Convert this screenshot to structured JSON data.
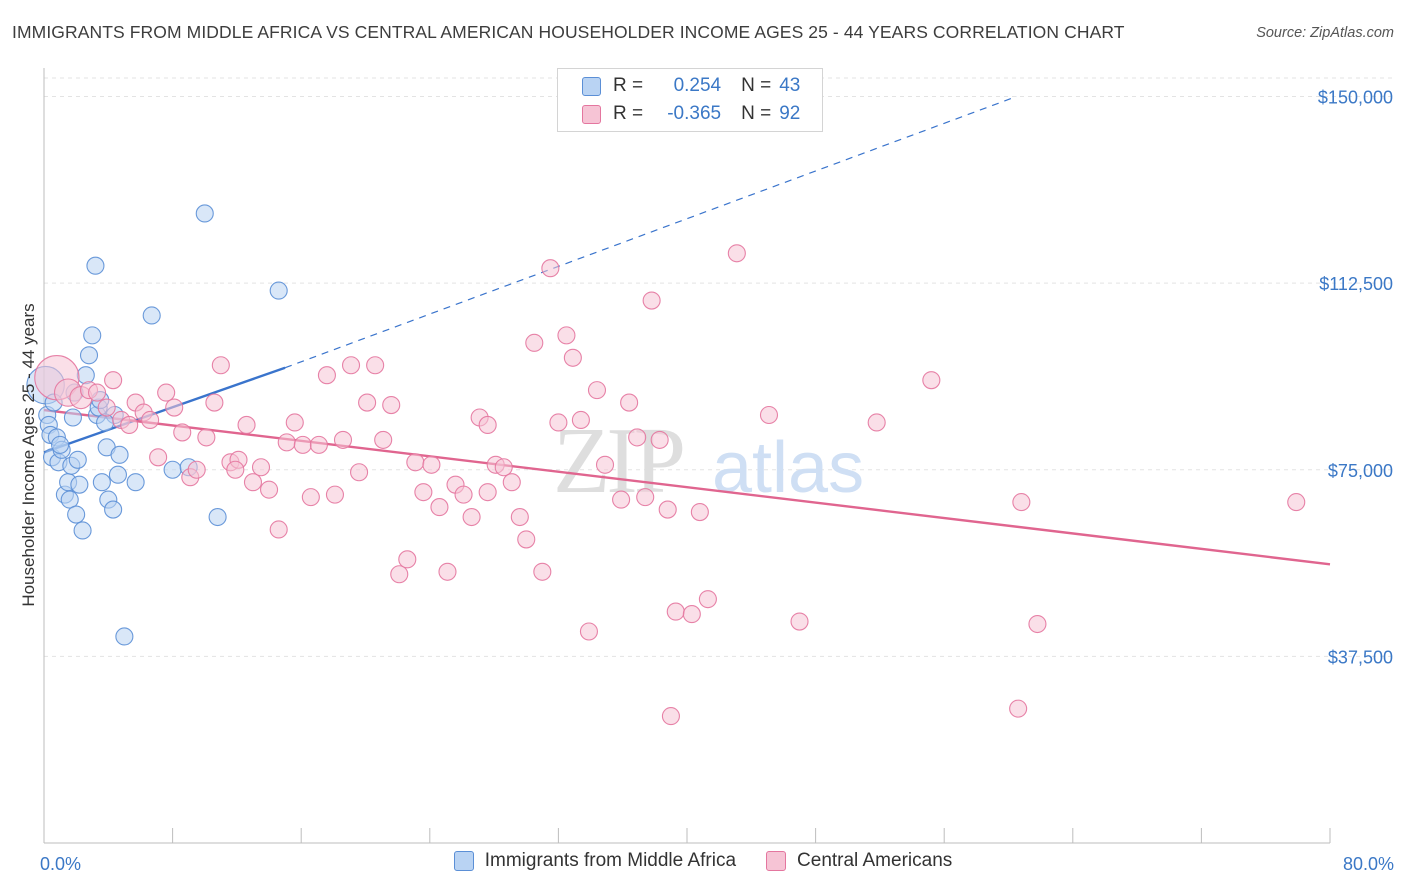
{
  "title": "IMMIGRANTS FROM MIDDLE AFRICA VS CENTRAL AMERICAN HOUSEHOLDER INCOME AGES 25 - 44 YEARS CORRELATION CHART",
  "source": "Source: ZipAtlas.com",
  "watermark": {
    "zip": "ZIP",
    "atlas": "atlas"
  },
  "colors": {
    "blue": "#5b8fd6",
    "blue_fill": "#b9d3f3",
    "blue_line": "#3a74cc",
    "pink": "#e4769f",
    "pink_fill": "#f6c4d5",
    "pink_line": "#e0658f",
    "tick_text": "#3b78c6",
    "grid": "#e3e3e3"
  },
  "stats": [
    {
      "r_label": "R =",
      "r_value": "0.254",
      "n_label": "N =",
      "n_value": "43",
      "series": "blue"
    },
    {
      "r_label": "R =",
      "r_value": "-0.365",
      "n_label": "N =",
      "n_value": "92",
      "series": "pink"
    }
  ],
  "chart_data": {
    "type": "scatter",
    "title": "IMMIGRANTS FROM MIDDLE AFRICA VS CENTRAL AMERICAN HOUSEHOLDER INCOME AGES 25 - 44 YEARS CORRELATION CHART",
    "xlabel": "",
    "ylabel": "Householder Income Ages 25 - 44 years",
    "xlim": [
      0,
      80
    ],
    "ylim": [
      0,
      155000
    ],
    "x_tick_labels": [
      {
        "value": 0,
        "label": "0.0%"
      },
      {
        "value": 80,
        "label": "80.0%"
      }
    ],
    "y_ticks": [
      {
        "value": 37500,
        "label": "$37,500"
      },
      {
        "value": 75000,
        "label": "$75,000"
      },
      {
        "value": 112500,
        "label": "$112,500"
      },
      {
        "value": 150000,
        "label": "$150,000"
      }
    ],
    "grid": true,
    "legend_position": "bottom",
    "series": [
      {
        "name": "Immigrants from Middle Africa",
        "color": "blue",
        "r": 0.254,
        "n": 43,
        "trend": {
          "x": [
            0,
            15
          ],
          "y": [
            78500,
            95500
          ],
          "extended_x": [
            15,
            60.5
          ],
          "extended_y": [
            95500,
            150000
          ]
        },
        "points": [
          [
            0.1,
            92000,
            2.2
          ],
          [
            0.2,
            86000,
            1
          ],
          [
            0.3,
            84000,
            1
          ],
          [
            0.4,
            82000,
            1
          ],
          [
            0.5,
            77500,
            1
          ],
          [
            0.8,
            81500,
            1
          ],
          [
            0.9,
            76500,
            1
          ],
          [
            1.1,
            79000,
            1
          ],
          [
            1.3,
            70000,
            1
          ],
          [
            1.5,
            72500,
            1
          ],
          [
            1.6,
            69000,
            1
          ],
          [
            1.7,
            75800,
            1
          ],
          [
            1.8,
            85500,
            1
          ],
          [
            2.0,
            66000,
            1
          ],
          [
            2.2,
            72000,
            1
          ],
          [
            2.4,
            62800,
            1
          ],
          [
            2.6,
            94000,
            1
          ],
          [
            2.8,
            98000,
            1
          ],
          [
            3.0,
            102000,
            1
          ],
          [
            3.2,
            116000,
            1
          ],
          [
            3.3,
            86000,
            1
          ],
          [
            3.4,
            87500,
            1
          ],
          [
            3.5,
            89000,
            1
          ],
          [
            3.9,
            79500,
            1
          ],
          [
            4.0,
            69000,
            1
          ],
          [
            4.3,
            67000,
            1
          ],
          [
            4.4,
            86000,
            1
          ],
          [
            4.7,
            78000,
            1
          ],
          [
            4.6,
            74000,
            1
          ],
          [
            5.0,
            41500,
            1
          ],
          [
            5.7,
            72500,
            1
          ],
          [
            6.7,
            106000,
            1
          ],
          [
            8.0,
            75000,
            1
          ],
          [
            9.0,
            75500,
            1
          ],
          [
            10.0,
            126500,
            1
          ],
          [
            10.8,
            65500,
            1
          ],
          [
            14.6,
            111000,
            1
          ],
          [
            3.6,
            72500,
            1
          ],
          [
            1.0,
            80000,
            1
          ],
          [
            0.6,
            88500,
            1
          ],
          [
            2.1,
            77000,
            1
          ],
          [
            3.8,
            84500,
            1
          ],
          [
            1.9,
            90500,
            1
          ]
        ]
      },
      {
        "name": "Central Americans",
        "color": "pink",
        "r": -0.365,
        "n": 92,
        "trend": {
          "x": [
            0,
            80
          ],
          "y": [
            87000,
            56000
          ]
        },
        "points": [
          [
            0.8,
            93500,
            2.6
          ],
          [
            1.5,
            90500,
            1.6
          ],
          [
            2.3,
            89500,
            1.3
          ],
          [
            2.8,
            91000,
            1
          ],
          [
            3.3,
            90500,
            1
          ],
          [
            3.9,
            87500,
            1
          ],
          [
            4.3,
            93000,
            1
          ],
          [
            4.8,
            85000,
            1
          ],
          [
            5.3,
            84000,
            1
          ],
          [
            5.7,
            88500,
            1
          ],
          [
            6.2,
            86500,
            1
          ],
          [
            6.6,
            85000,
            1
          ],
          [
            7.1,
            77500,
            1
          ],
          [
            7.6,
            90500,
            1
          ],
          [
            8.1,
            87500,
            1
          ],
          [
            8.6,
            82500,
            1
          ],
          [
            9.1,
            73500,
            1
          ],
          [
            9.5,
            75000,
            1
          ],
          [
            10.1,
            81500,
            1
          ],
          [
            10.6,
            88500,
            1
          ],
          [
            11.0,
            96000,
            1
          ],
          [
            11.6,
            76500,
            1
          ],
          [
            12.1,
            77000,
            1
          ],
          [
            12.6,
            84000,
            1
          ],
          [
            13.0,
            72500,
            1
          ],
          [
            13.5,
            75500,
            1
          ],
          [
            14.0,
            71000,
            1
          ],
          [
            14.6,
            63000,
            1
          ],
          [
            15.1,
            80500,
            1
          ],
          [
            15.6,
            84500,
            1
          ],
          [
            16.1,
            80000,
            1
          ],
          [
            16.6,
            69500,
            1
          ],
          [
            17.1,
            80000,
            1
          ],
          [
            17.6,
            94000,
            1
          ],
          [
            18.1,
            70000,
            1
          ],
          [
            18.6,
            81000,
            1
          ],
          [
            19.1,
            96000,
            1
          ],
          [
            19.6,
            74500,
            1
          ],
          [
            20.1,
            88500,
            1
          ],
          [
            20.6,
            96000,
            1
          ],
          [
            21.1,
            81000,
            1
          ],
          [
            21.6,
            88000,
            1
          ],
          [
            22.1,
            54000,
            1
          ],
          [
            22.6,
            57000,
            1
          ],
          [
            23.1,
            76500,
            1
          ],
          [
            23.6,
            70500,
            1
          ],
          [
            24.1,
            76000,
            1
          ],
          [
            24.6,
            67500,
            1
          ],
          [
            25.1,
            54500,
            1
          ],
          [
            25.6,
            72000,
            1
          ],
          [
            26.1,
            70000,
            1
          ],
          [
            26.6,
            65500,
            1
          ],
          [
            27.1,
            85500,
            1
          ],
          [
            27.6,
            84000,
            1
          ],
          [
            27.6,
            70500,
            1
          ],
          [
            28.1,
            76000,
            1
          ],
          [
            28.6,
            75500,
            1
          ],
          [
            29.1,
            72500,
            1
          ],
          [
            29.6,
            65500,
            1
          ],
          [
            30.0,
            61000,
            1
          ],
          [
            30.5,
            100500,
            1
          ],
          [
            31.0,
            54500,
            1
          ],
          [
            31.5,
            115500,
            1
          ],
          [
            32.0,
            84500,
            1
          ],
          [
            32.5,
            102000,
            1
          ],
          [
            32.9,
            97500,
            1
          ],
          [
            33.4,
            85000,
            1
          ],
          [
            33.9,
            42500,
            1
          ],
          [
            34.4,
            91000,
            1
          ],
          [
            34.9,
            76000,
            1
          ],
          [
            35.9,
            69000,
            1
          ],
          [
            36.4,
            88500,
            1
          ],
          [
            36.9,
            81500,
            1
          ],
          [
            37.4,
            69500,
            1
          ],
          [
            37.8,
            109000,
            1
          ],
          [
            38.3,
            81000,
            1
          ],
          [
            38.8,
            67000,
            1
          ],
          [
            39.0,
            25500,
            1
          ],
          [
            39.3,
            46500,
            1
          ],
          [
            40.3,
            46000,
            1
          ],
          [
            40.8,
            66500,
            1
          ],
          [
            41.3,
            49000,
            1
          ],
          [
            43.1,
            118500,
            1
          ],
          [
            45.1,
            86000,
            1
          ],
          [
            47.0,
            44500,
            1
          ],
          [
            51.8,
            84500,
            1
          ],
          [
            55.2,
            93000,
            1
          ],
          [
            60.6,
            27000,
            1
          ],
          [
            60.8,
            68500,
            1
          ],
          [
            61.8,
            44000,
            1
          ],
          [
            77.9,
            68500,
            1
          ],
          [
            11.9,
            75000,
            1
          ]
        ]
      }
    ]
  },
  "legend": [
    {
      "label": "Immigrants from Middle Africa",
      "series": "blue"
    },
    {
      "label": "Central Americans",
      "series": "pink"
    }
  ]
}
